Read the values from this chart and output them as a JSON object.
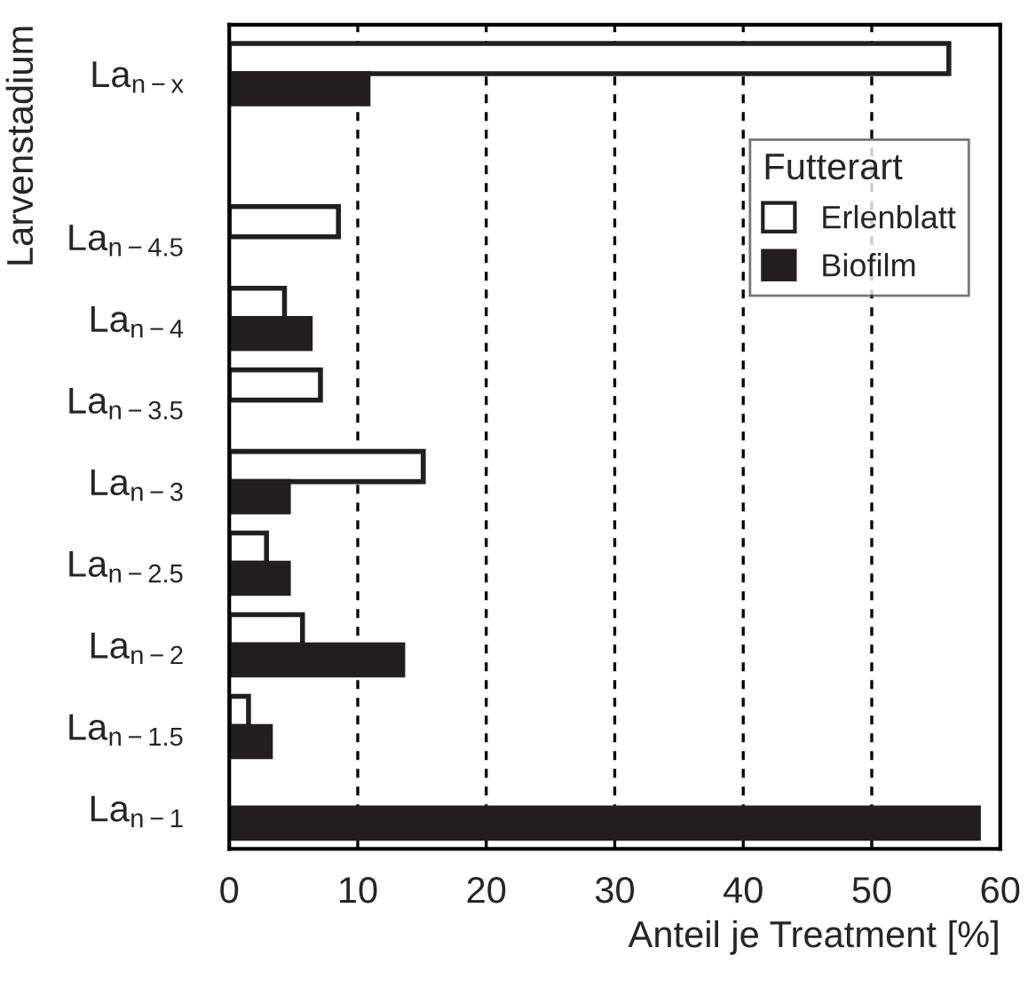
{
  "chart_data": {
    "type": "bar",
    "orientation": "horizontal",
    "categories": [
      "La$_{n−x}$",
      null,
      "La$_{n−4.5}$",
      "La$_{n−4}$",
      "La$_{n−3.5}$",
      "La$_{n−3}$",
      "La$_{n−2.5}$",
      "La$_{n−2}$",
      "La$_{n−1.5}$",
      "La$_{n−1}$"
    ],
    "series": [
      {
        "name": "Erlenblatt",
        "color": "#ffffff",
        "values": [
          56,
          null,
          8.5,
          4.3,
          7.1,
          15.1,
          2.9,
          5.7,
          1.5,
          null
        ]
      },
      {
        "name": "Biofilm",
        "color": "#231f20",
        "values": [
          10.8,
          null,
          null,
          6.3,
          null,
          4.6,
          4.6,
          13.5,
          3.2,
          58.3
        ]
      }
    ],
    "xlabel": "Anteil je Treatment [%]",
    "ylabel": "Larvenstadium",
    "legend_title": "Futterart",
    "xlim": [
      0,
      60
    ],
    "xticks": [
      0,
      10,
      20,
      30,
      40,
      50,
      60
    ],
    "grid": "x",
    "legend": "top right"
  }
}
